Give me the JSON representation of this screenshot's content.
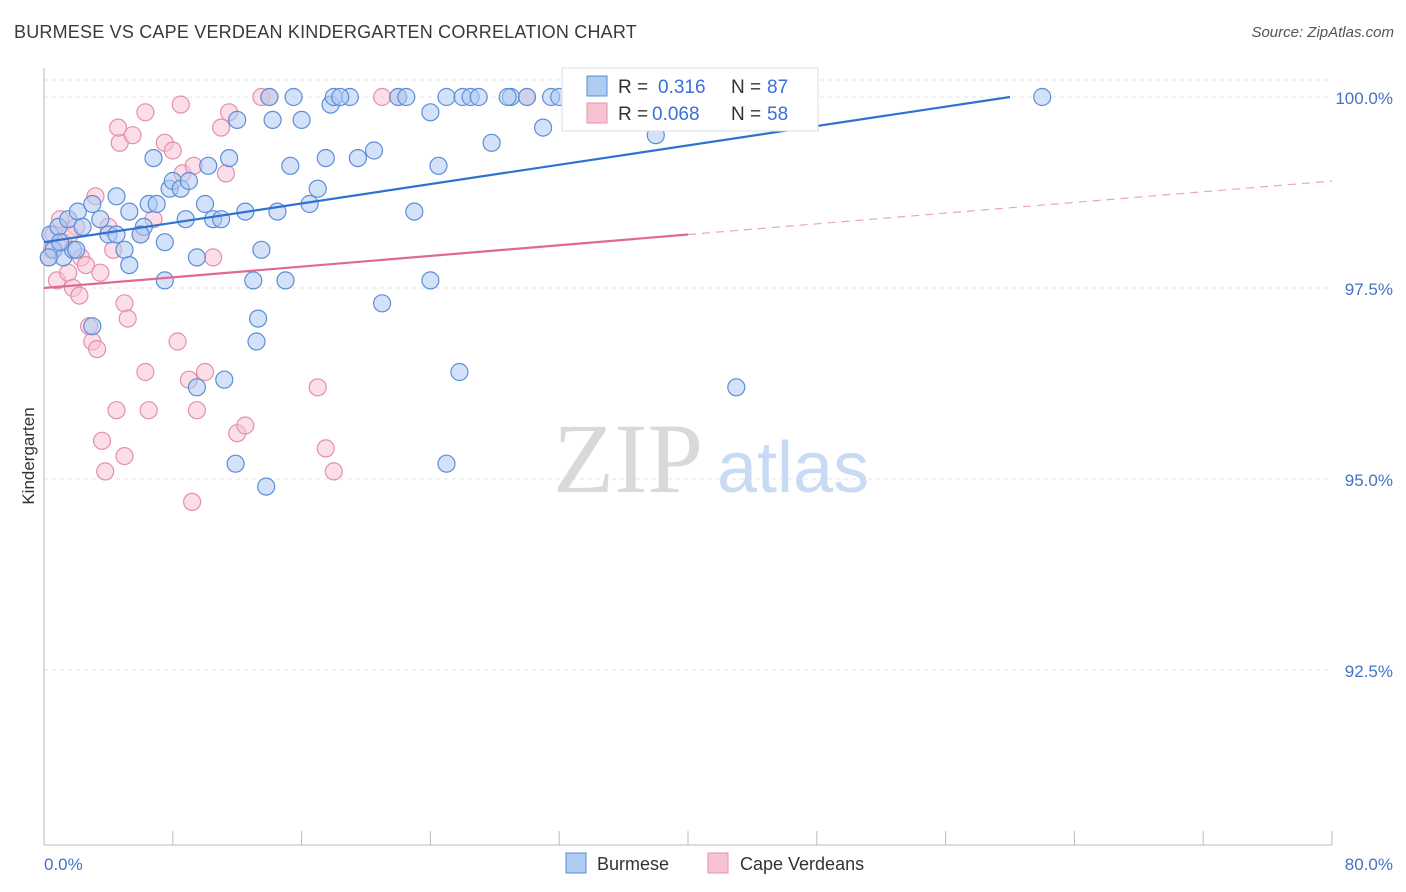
{
  "title": "BURMESE VS CAPE VERDEAN KINDERGARTEN CORRELATION CHART",
  "source": "Source: ZipAtlas.com",
  "watermark": {
    "zip": "ZIP",
    "atlas": "atlas"
  },
  "colors": {
    "burmese_fill": "#aecbf2",
    "burmese_stroke": "#5b8ed8",
    "burmese_line": "#2f72cf",
    "cape_fill": "#f7c3d3",
    "cape_stroke": "#e590ab",
    "cape_line": "#e06894",
    "grid": "#e3e3e3",
    "axis_text": "#4472c4"
  },
  "legend": {
    "rows": [
      {
        "r_label": "R =",
        "r_value": "0.316",
        "n_label": "N =",
        "n_value": "87"
      },
      {
        "r_label": "R =",
        "r_value": "0.068",
        "n_label": "N =",
        "n_value": "58"
      }
    ]
  },
  "chart_data": {
    "type": "scatter",
    "title": "BURMESE VS CAPE VERDEAN KINDERGARTEN CORRELATION CHART",
    "xlabel": "",
    "ylabel": "Kindergarten",
    "xlim": [
      0,
      80
    ],
    "ylim": [
      90.5,
      100.5
    ],
    "x_tick_labels": [
      "0.0%",
      "80.0%"
    ],
    "y_ticks": [
      92.5,
      95.0,
      97.5,
      100.0
    ],
    "y_tick_labels": [
      "92.5%",
      "95.0%",
      "97.5%",
      "100.0%"
    ],
    "grid": true,
    "legend_position": "bottom",
    "series": [
      {
        "name": "Burmese",
        "R": 0.316,
        "N": 87,
        "trend": {
          "x0": 0,
          "y0": 98.1,
          "x1": 60,
          "y1": 100.0,
          "style": "solid"
        },
        "points": [
          [
            0.4,
            98.2
          ],
          [
            0.6,
            98.0
          ],
          [
            0.9,
            98.3
          ],
          [
            1.2,
            97.9
          ],
          [
            1.5,
            98.4
          ],
          [
            1.8,
            98.0
          ],
          [
            2.1,
            98.5
          ],
          [
            2.4,
            98.3
          ],
          [
            3.0,
            98.6
          ],
          [
            3.5,
            98.4
          ],
          [
            4.0,
            98.2
          ],
          [
            4.5,
            98.7
          ],
          [
            5.0,
            98.0
          ],
          [
            5.3,
            97.8
          ],
          [
            5.3,
            98.5
          ],
          [
            6.2,
            98.3
          ],
          [
            6.5,
            98.6
          ],
          [
            6.8,
            99.2
          ],
          [
            7.0,
            98.6
          ],
          [
            7.5,
            98.1
          ],
          [
            7.8,
            98.8
          ],
          [
            8.0,
            98.9
          ],
          [
            8.5,
            98.8
          ],
          [
            8.8,
            98.4
          ],
          [
            9.0,
            98.9
          ],
          [
            9.5,
            97.9
          ],
          [
            10.0,
            98.6
          ],
          [
            10.2,
            99.1
          ],
          [
            10.5,
            98.4
          ],
          [
            11.0,
            98.4
          ],
          [
            11.5,
            99.2
          ],
          [
            12.0,
            99.7
          ],
          [
            12.5,
            98.5
          ],
          [
            13.0,
            97.6
          ],
          [
            13.5,
            98.0
          ],
          [
            14.0,
            100.0
          ],
          [
            14.5,
            98.5
          ],
          [
            15.0,
            97.6
          ],
          [
            15.3,
            99.1
          ],
          [
            15.5,
            100.0
          ],
          [
            16.0,
            99.7
          ],
          [
            16.5,
            98.6
          ],
          [
            17.0,
            98.8
          ],
          [
            17.5,
            99.2
          ],
          [
            17.8,
            99.9
          ],
          [
            18.0,
            100.0
          ],
          [
            19.0,
            100.0
          ],
          [
            19.5,
            99.2
          ],
          [
            20.5,
            99.3
          ],
          [
            21.0,
            97.3
          ],
          [
            22.0,
            100.0
          ],
          [
            22.5,
            100.0
          ],
          [
            23.0,
            98.5
          ],
          [
            24.0,
            99.8
          ],
          [
            24.5,
            99.1
          ],
          [
            25.0,
            100.0
          ],
          [
            26.0,
            100.0
          ],
          [
            26.5,
            100.0
          ],
          [
            27.0,
            100.0
          ],
          [
            27.8,
            99.4
          ],
          [
            29.0,
            100.0
          ],
          [
            30.0,
            100.0
          ],
          [
            31.0,
            99.6
          ],
          [
            31.5,
            100.0
          ],
          [
            32.0,
            100.0
          ],
          [
            38.0,
            99.5
          ],
          [
            43.0,
            96.2
          ],
          [
            62.0,
            100.0
          ],
          [
            13.3,
            97.1
          ],
          [
            13.2,
            96.8
          ],
          [
            11.2,
            96.3
          ],
          [
            9.5,
            96.2
          ],
          [
            11.9,
            95.2
          ],
          [
            13.8,
            94.9
          ],
          [
            25.0,
            95.2
          ],
          [
            25.8,
            96.4
          ],
          [
            24.0,
            97.6
          ],
          [
            7.5,
            97.6
          ],
          [
            3.0,
            97.0
          ],
          [
            4.5,
            98.2
          ],
          [
            6.0,
            98.2
          ],
          [
            1.0,
            98.1
          ],
          [
            0.3,
            97.9
          ],
          [
            2.0,
            98.0
          ],
          [
            18.4,
            100.0
          ],
          [
            28.8,
            100.0
          ],
          [
            14.2,
            99.7
          ]
        ]
      },
      {
        "name": "Cape Verdeans",
        "R": 0.068,
        "N": 58,
        "trend": {
          "x0": 0,
          "y0": 97.5,
          "x1": 40,
          "y1": 98.2,
          "x_ext": 80,
          "y_ext": 98.9,
          "style": "solid-then-dashed"
        },
        "points": [
          [
            0.3,
            97.9
          ],
          [
            0.6,
            98.2
          ],
          [
            0.8,
            97.6
          ],
          [
            1.0,
            98.4
          ],
          [
            1.2,
            98.1
          ],
          [
            1.5,
            97.7
          ],
          [
            1.8,
            97.5
          ],
          [
            2.0,
            98.3
          ],
          [
            2.3,
            97.9
          ],
          [
            2.6,
            97.8
          ],
          [
            2.8,
            97.0
          ],
          [
            3.0,
            96.8
          ],
          [
            3.2,
            98.7
          ],
          [
            3.5,
            97.7
          ],
          [
            4.0,
            98.3
          ],
          [
            4.3,
            98.0
          ],
          [
            4.5,
            95.9
          ],
          [
            4.7,
            99.4
          ],
          [
            5.0,
            97.3
          ],
          [
            5.2,
            97.1
          ],
          [
            5.5,
            99.5
          ],
          [
            6.0,
            98.2
          ],
          [
            6.3,
            96.4
          ],
          [
            6.5,
            95.9
          ],
          [
            7.5,
            99.4
          ],
          [
            8.0,
            99.3
          ],
          [
            8.3,
            96.8
          ],
          [
            8.6,
            99.0
          ],
          [
            9.0,
            96.3
          ],
          [
            9.3,
            99.1
          ],
          [
            9.5,
            95.9
          ],
          [
            10.0,
            96.4
          ],
          [
            10.5,
            97.9
          ],
          [
            11.0,
            99.6
          ],
          [
            11.5,
            99.8
          ],
          [
            12.0,
            95.6
          ],
          [
            12.5,
            95.7
          ],
          [
            13.5,
            100.0
          ],
          [
            14.0,
            100.0
          ],
          [
            17.0,
            96.2
          ],
          [
            17.5,
            95.4
          ],
          [
            18.0,
            95.1
          ],
          [
            21.0,
            100.0
          ],
          [
            22.0,
            100.0
          ],
          [
            30.0,
            100.0
          ],
          [
            9.2,
            94.7
          ],
          [
            5.0,
            95.3
          ],
          [
            3.6,
            95.5
          ],
          [
            3.8,
            95.1
          ],
          [
            6.8,
            98.4
          ],
          [
            2.2,
            97.4
          ],
          [
            1.6,
            98.2
          ],
          [
            0.5,
            98.0
          ],
          [
            3.3,
            96.7
          ],
          [
            4.6,
            99.6
          ],
          [
            11.3,
            99.0
          ],
          [
            6.3,
            99.8
          ],
          [
            8.5,
            99.9
          ]
        ]
      }
    ]
  },
  "bottom_legend": [
    {
      "label": "Burmese"
    },
    {
      "label": "Cape Verdeans"
    }
  ]
}
